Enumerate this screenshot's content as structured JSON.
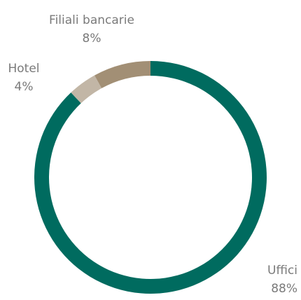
{
  "chart_data": {
    "type": "donut",
    "categories": [
      "Uffici",
      "Hotel",
      "Filiali bancarie"
    ],
    "values": [
      88,
      4,
      8
    ],
    "value_labels": [
      "88%",
      "4%",
      "8%"
    ],
    "colors": [
      "#006b5f",
      "#c2b6a6",
      "#a28f75"
    ]
  }
}
